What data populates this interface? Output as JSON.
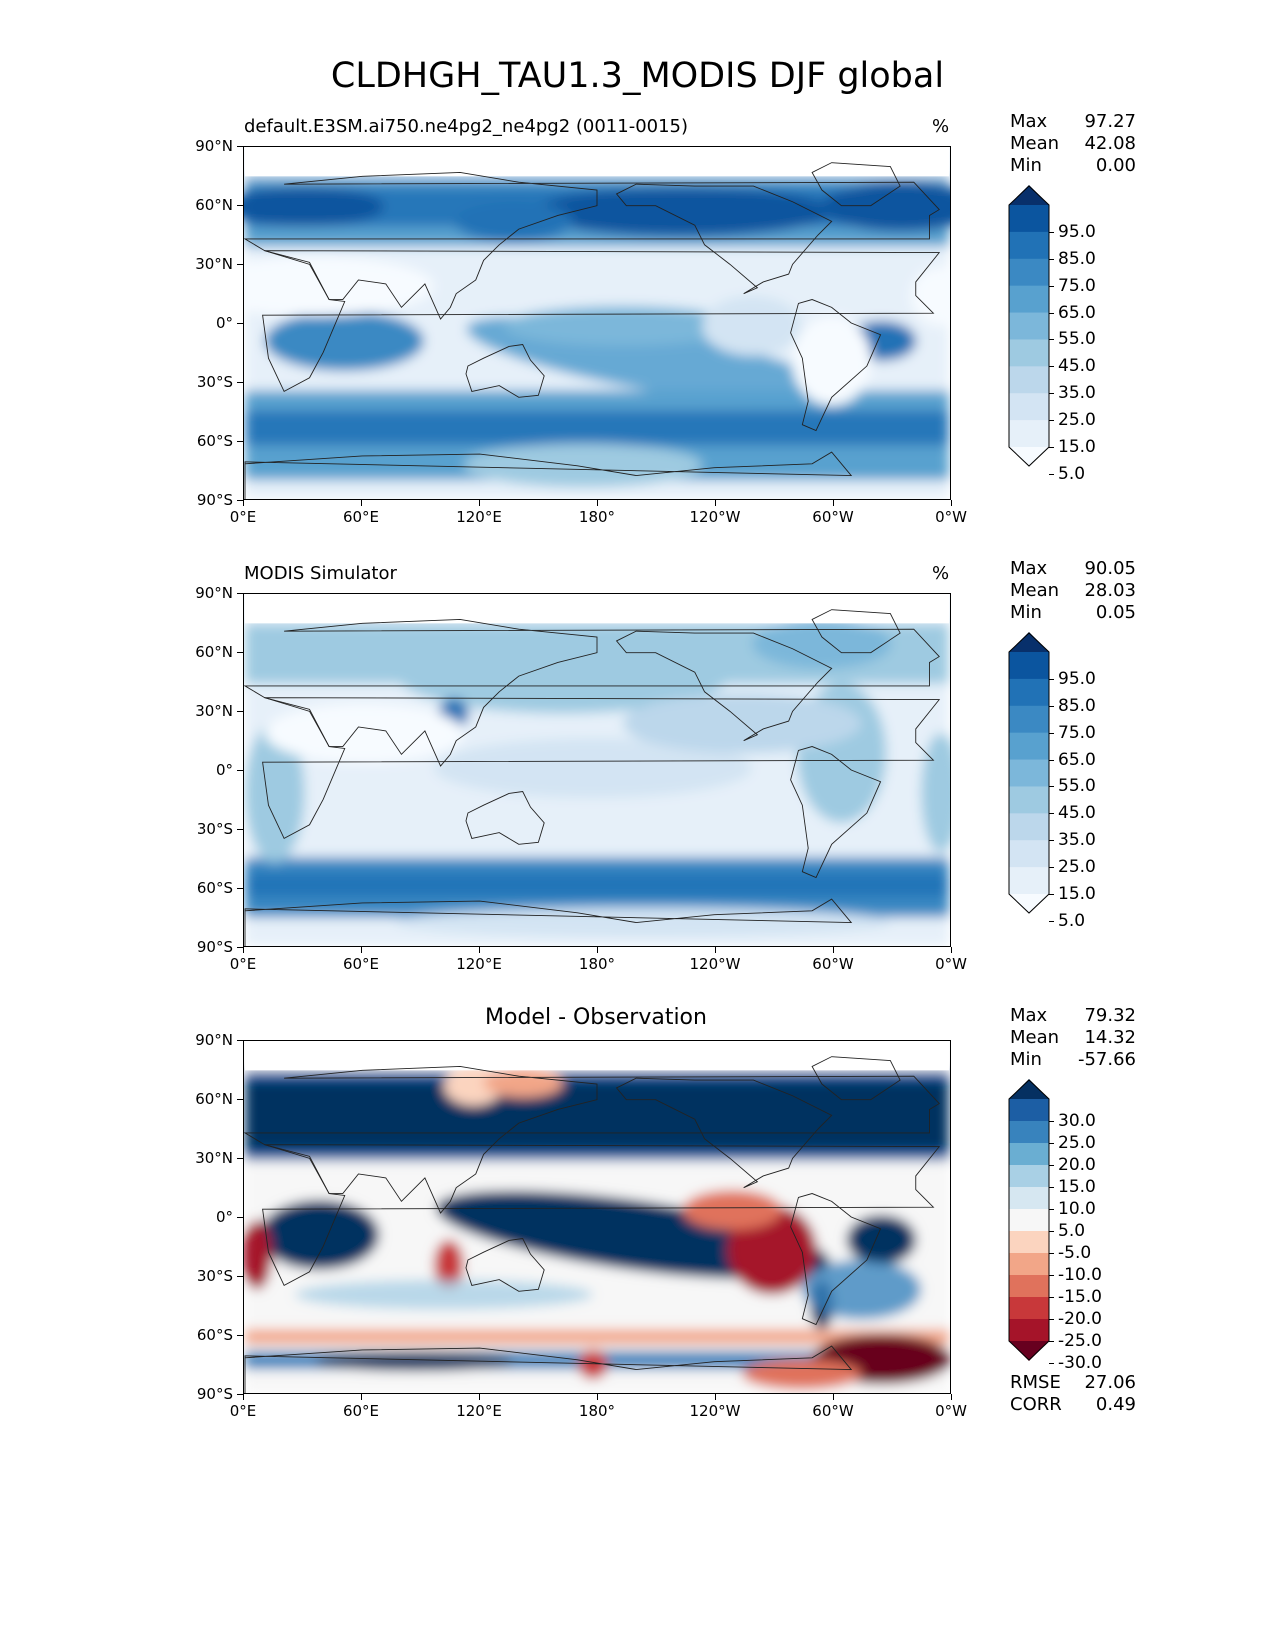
{
  "title": "CLDHGH_TAU1.3_MODIS DJF global",
  "lat_ticks": [
    "90°N",
    "60°N",
    "30°N",
    "0°",
    "30°S",
    "60°S",
    "90°S"
  ],
  "lon_ticks": [
    "0°E",
    "60°E",
    "120°E",
    "180°",
    "120°W",
    "60°W",
    "0°W"
  ],
  "panels": [
    {
      "title_left": "default.E3SM.ai750.ne4pg2_ne4pg2 (0011-0015)",
      "units": "%",
      "stats": {
        "max_label": "Max",
        "max": "97.27",
        "mean_label": "Mean",
        "mean": "42.08",
        "min_label": "Min",
        "min": "0.00"
      },
      "colorbar": {
        "labels": [
          "95.0",
          "85.0",
          "75.0",
          "65.0",
          "55.0",
          "45.0",
          "35.0",
          "25.0",
          "15.0",
          "5.0"
        ],
        "colors": [
          "#f7fbff",
          "#e6f0f9",
          "#d3e4f3",
          "#bcd7eb",
          "#9ecae1",
          "#7cb7da",
          "#58a1cf",
          "#3b89c3",
          "#2172b6",
          "#0b559f",
          "#08306b"
        ]
      }
    },
    {
      "title_left": "MODIS Simulator",
      "units": "%",
      "stats": {
        "max_label": "Max",
        "max": "90.05",
        "mean_label": "Mean",
        "mean": "28.03",
        "min_label": "Min",
        "min": "0.05"
      },
      "colorbar": {
        "labels": [
          "95.0",
          "85.0",
          "75.0",
          "65.0",
          "55.0",
          "45.0",
          "35.0",
          "25.0",
          "15.0",
          "5.0"
        ],
        "colors": [
          "#f7fbff",
          "#e6f0f9",
          "#d3e4f3",
          "#bcd7eb",
          "#9ecae1",
          "#7cb7da",
          "#58a1cf",
          "#3b89c3",
          "#2172b6",
          "#0b559f",
          "#08306b"
        ]
      }
    },
    {
      "title_center": "Model - Observation",
      "stats": {
        "max_label": "Max",
        "max": "79.32",
        "mean_label": "Mean",
        "mean": "14.32",
        "min_label": "Min",
        "min": "-57.66"
      },
      "metrics": {
        "rmse_label": "RMSE",
        "rmse": "27.06",
        "corr_label": "CORR",
        "corr": "0.49"
      },
      "colorbar": {
        "labels": [
          "30.0",
          "25.0",
          "20.0",
          "15.0",
          "10.0",
          "5.0",
          "-5.0",
          "-10.0",
          "-15.0",
          "-20.0",
          "-25.0",
          "-30.0"
        ],
        "colors": [
          "#67001f",
          "#a51429",
          "#c8383a",
          "#e0725c",
          "#f2a688",
          "#fbd4bf",
          "#f7f7f7",
          "#d6e7f1",
          "#a9d0e5",
          "#6aaed2",
          "#3883bd",
          "#1c5ea4",
          "#053061"
        ]
      }
    }
  ]
}
